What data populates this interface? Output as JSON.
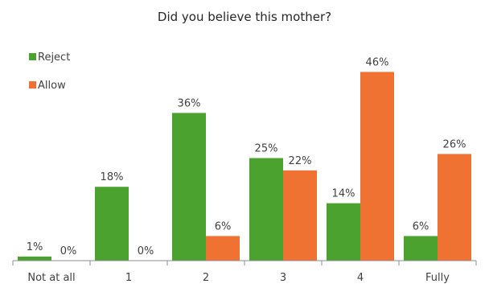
{
  "chart_data": {
    "type": "bar",
    "title": "Did you believe this mother?",
    "xlabel": "",
    "ylabel": "",
    "categories": [
      "Not at all",
      "1",
      "2",
      "3",
      "4",
      "Fully"
    ],
    "series": [
      {
        "name": "Reject",
        "color": "#4ca22f",
        "values": [
          1,
          18,
          36,
          25,
          14,
          6
        ],
        "labels": [
          "1%",
          "18%",
          "36%",
          "25%",
          "14%",
          "6%"
        ]
      },
      {
        "name": "Allow",
        "color": "#f07232",
        "values": [
          0,
          0,
          6,
          22,
          46,
          26
        ],
        "labels": [
          "0%",
          "0%",
          "6%",
          "22%",
          "46%",
          "26%"
        ]
      }
    ],
    "ylim": [
      0,
      50
    ],
    "grid": false,
    "legend": "top-left"
  }
}
